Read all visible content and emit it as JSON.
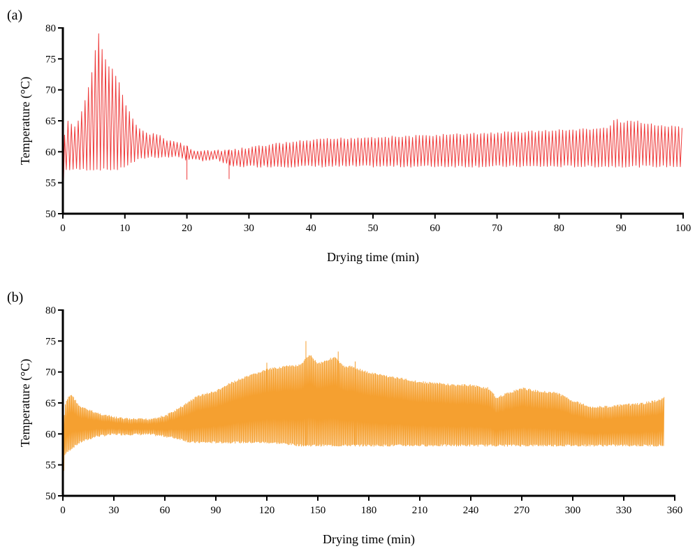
{
  "chart_data": [
    {
      "type": "line",
      "panel_label": "(a)",
      "xlabel": "Drying time (min)",
      "ylabel": "Temperature (°C)",
      "xlim": [
        0,
        100
      ],
      "ylim": [
        50,
        80
      ],
      "xticks": [
        0,
        10,
        20,
        30,
        40,
        50,
        60,
        70,
        80,
        90,
        100
      ],
      "yticks": [
        50,
        55,
        60,
        65,
        70,
        75,
        80
      ],
      "grid": false,
      "series": [
        {
          "color": "#ee3a3a",
          "oscillation_period": 0.55,
          "x": [
            0.0,
            0.3,
            0.6,
            1,
            2,
            3,
            4,
            5,
            5.6,
            6,
            7,
            8,
            9,
            10,
            11,
            12,
            13,
            14,
            15,
            16,
            17,
            18,
            19,
            20,
            21,
            22,
            23,
            24,
            25,
            26,
            27,
            28,
            30,
            35,
            40,
            45,
            50,
            55,
            60,
            65,
            70,
            75,
            80,
            85,
            88,
            89,
            90,
            92,
            95,
            100
          ],
          "upper": [
            50.5,
            64.0,
            65.0,
            65.0,
            64.0,
            66.5,
            70.0,
            74.5,
            80.0,
            78.0,
            74.5,
            73.5,
            71.5,
            68.0,
            66.0,
            64.0,
            63.5,
            63.0,
            63.0,
            62.5,
            62.0,
            61.8,
            61.5,
            61.0,
            60.5,
            60.3,
            60.3,
            60.3,
            60.3,
            60.3,
            60.4,
            60.5,
            60.8,
            61.5,
            62.0,
            62.3,
            62.5,
            62.6,
            62.8,
            63.0,
            63.2,
            63.4,
            63.6,
            63.8,
            64.0,
            65.5,
            64.8,
            65.2,
            64.5,
            64.0
          ],
          "lower": [
            50.0,
            56.5,
            57.0,
            57.0,
            57.0,
            57.0,
            57.0,
            57.0,
            57.0,
            57.0,
            57.0,
            57.0,
            57.0,
            57.5,
            58.0,
            58.5,
            58.8,
            59.0,
            59.0,
            59.0,
            59.0,
            59.0,
            59.0,
            58.5,
            58.5,
            58.5,
            58.5,
            58.5,
            58.5,
            58.0,
            57.5,
            57.5,
            57.5,
            57.5,
            57.5,
            57.5,
            57.5,
            57.5,
            57.5,
            57.5,
            57.5,
            57.5,
            57.5,
            57.5,
            57.5,
            57.5,
            57.5,
            57.5,
            57.5,
            57.5
          ],
          "dips": [
            [
              20.0,
              55.5
            ],
            [
              26.8,
              55.6
            ]
          ]
        }
      ]
    },
    {
      "type": "line",
      "panel_label": "(b)",
      "xlabel": "Drying time (min)",
      "ylabel": "Temperature (°C)",
      "xlim": [
        0,
        360
      ],
      "ylim": [
        50,
        80
      ],
      "xticks": [
        0,
        30,
        60,
        90,
        120,
        150,
        180,
        210,
        240,
        270,
        300,
        330,
        360
      ],
      "yticks": [
        50,
        55,
        60,
        65,
        70,
        75,
        80
      ],
      "grid": false,
      "series": [
        {
          "color": "#f5a030",
          "oscillation_period": 0.6,
          "x": [
            0,
            1,
            3,
            5,
            10,
            15,
            20,
            30,
            40,
            50,
            60,
            70,
            75,
            80,
            90,
            100,
            110,
            120,
            130,
            140,
            145,
            150,
            155,
            160,
            165,
            170,
            180,
            190,
            200,
            210,
            220,
            230,
            240,
            250,
            255,
            260,
            270,
            280,
            290,
            300,
            310,
            320,
            330,
            340,
            350,
            354
          ],
          "upper": [
            50.0,
            64.5,
            66.0,
            66.5,
            64.5,
            64.0,
            63.5,
            62.8,
            62.5,
            62.5,
            63.0,
            64.5,
            65.5,
            66.3,
            67.0,
            68.5,
            69.5,
            70.5,
            71.0,
            71.2,
            73.0,
            71.5,
            72.0,
            72.5,
            71.0,
            71.0,
            70.0,
            69.5,
            69.0,
            68.5,
            68.3,
            68.0,
            68.0,
            67.5,
            66.0,
            66.5,
            67.5,
            67.0,
            66.8,
            65.5,
            64.5,
            64.5,
            64.8,
            65.0,
            65.5,
            66.0
          ],
          "lower": [
            50.0,
            56.5,
            57.0,
            57.5,
            58.5,
            59.0,
            59.5,
            59.8,
            59.8,
            59.8,
            59.5,
            59.0,
            58.5,
            58.5,
            58.5,
            58.5,
            58.5,
            58.5,
            58.3,
            58.0,
            58.0,
            58.0,
            58.0,
            58.0,
            58.0,
            58.0,
            58.0,
            58.0,
            58.0,
            58.0,
            58.0,
            58.0,
            58.0,
            58.0,
            58.0,
            58.0,
            58.0,
            58.0,
            58.0,
            58.0,
            58.0,
            58.0,
            58.0,
            58.0,
            58.0,
            58.0
          ],
          "spikes": [
            [
              143,
              75.0
            ],
            [
              162,
              73.3
            ],
            [
              120,
              71.5
            ],
            [
              172,
              71.7
            ]
          ]
        }
      ]
    }
  ]
}
